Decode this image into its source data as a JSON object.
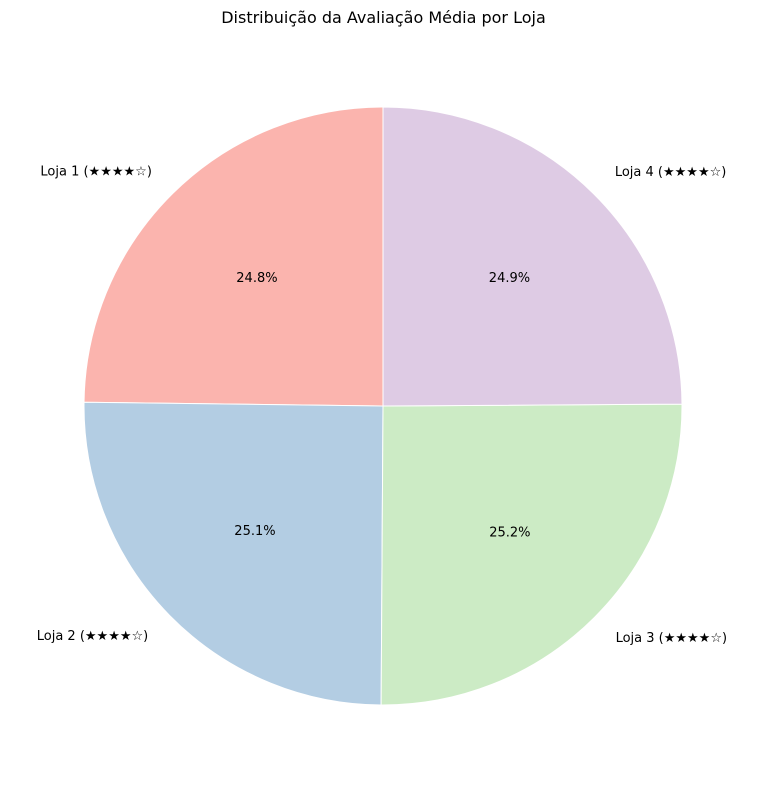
{
  "chart_data": {
    "type": "pie",
    "title": "Distribuição da Avaliação Média por Loja",
    "start_angle_deg": 90,
    "direction": "counterclockwise",
    "legend": "none",
    "slices": [
      {
        "label": "Loja 1 (★★★★☆)",
        "percent": 24.8,
        "percent_label": "24.8%",
        "color": "#fbb4ae"
      },
      {
        "label": "Loja 2 (★★★★☆)",
        "percent": 25.1,
        "percent_label": "25.1%",
        "color": "#b3cde3"
      },
      {
        "label": "Loja 3 (★★★★☆)",
        "percent": 25.2,
        "percent_label": "25.2%",
        "color": "#ccebc5"
      },
      {
        "label": "Loja 4 (★★★★☆)",
        "percent": 24.9,
        "percent_label": "24.9%",
        "color": "#decbe4"
      }
    ]
  }
}
